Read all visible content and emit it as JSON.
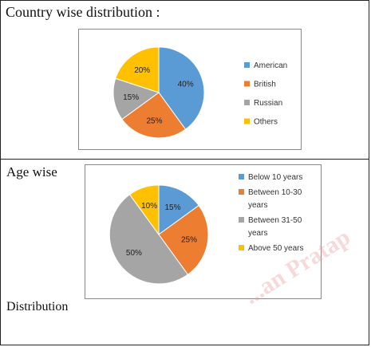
{
  "sections": {
    "country_heading": "Country wise distribution :",
    "age_heading": "Age wise",
    "footer_text": "Distribution"
  },
  "watermark": "...an Pratap",
  "chart_data": [
    {
      "type": "pie",
      "title": "",
      "legend_position": "right",
      "categories": [
        "American",
        "British",
        "Russian",
        "Others"
      ],
      "values": [
        40,
        25,
        15,
        20
      ],
      "labels": [
        "40%",
        "25%",
        "15%",
        "20%"
      ],
      "colors": [
        "#5B9BD5",
        "#ED7D31",
        "#A5A5A5",
        "#FFC000"
      ]
    },
    {
      "type": "pie",
      "title": "",
      "legend_position": "right",
      "categories": [
        "Below 10 years",
        "Between 10-30 years",
        "Between 31-50 years",
        "Above 50 years"
      ],
      "legend_lines": [
        [
          "Below 10 years"
        ],
        [
          "Between 10-30",
          "years"
        ],
        [
          "Between 31-50",
          "years"
        ],
        [
          "Above 50 years"
        ]
      ],
      "values": [
        15,
        25,
        50,
        10
      ],
      "labels": [
        "15%",
        "25%",
        "50%",
        "10%"
      ],
      "colors": [
        "#5B9BD5",
        "#ED7D31",
        "#A5A5A5",
        "#FFC000"
      ]
    }
  ]
}
